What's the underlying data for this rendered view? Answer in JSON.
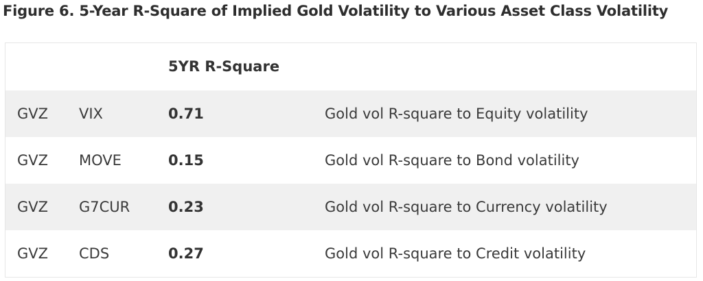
{
  "title": "Figure 6. 5-Year R-Square of Implied Gold Volatility to Various Asset Class Volatility",
  "table": {
    "header": [
      "",
      "",
      "5YR R-Square",
      ""
    ],
    "rows": [
      [
        "GVZ",
        "VIX",
        "0.71",
        "Gold vol R-square to Equity volatility"
      ],
      [
        "GVZ",
        "MOVE",
        "0.15",
        "Gold vol R-square to Bond volatility"
      ],
      [
        "GVZ",
        "G7CUR",
        "0.23",
        "Gold vol R-square to Currency volatility"
      ],
      [
        "GVZ",
        "CDS",
        "0.27",
        "Gold vol R-square to Credit volatility"
      ]
    ]
  }
}
